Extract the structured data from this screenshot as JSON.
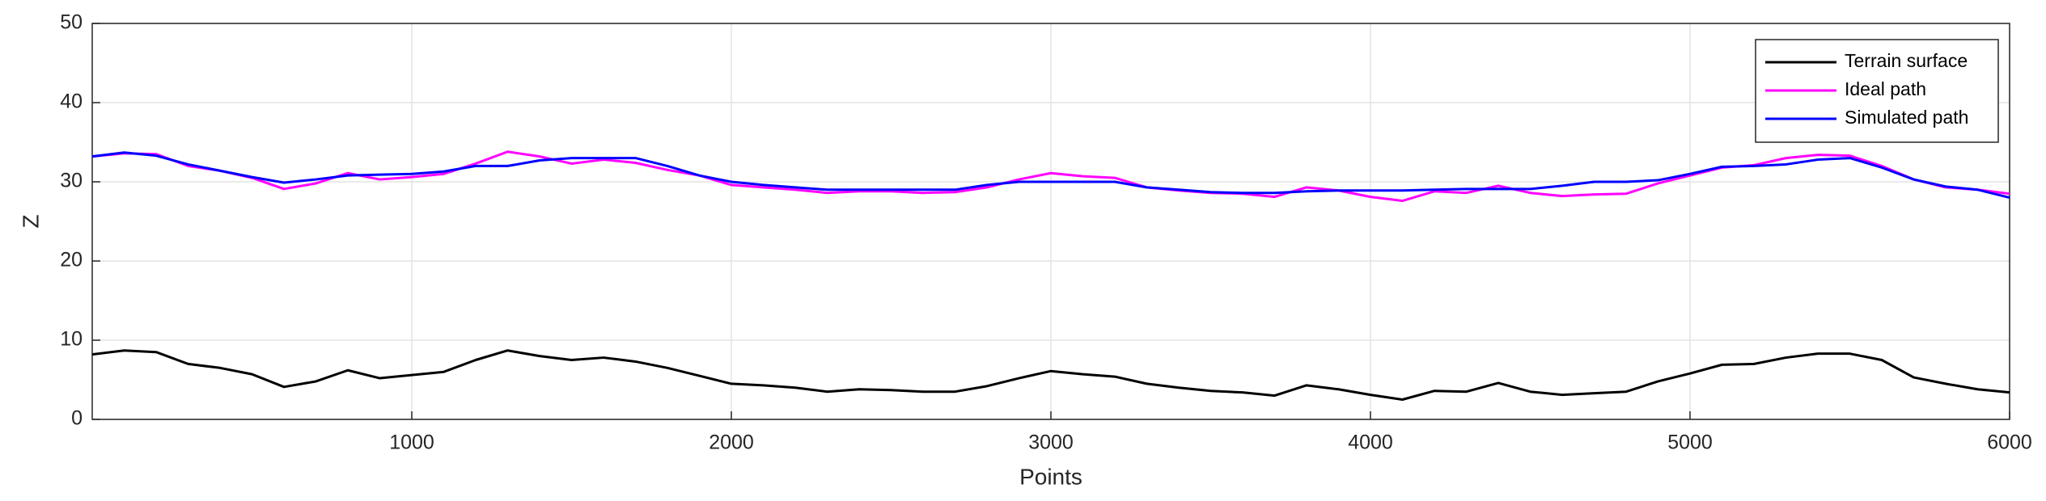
{
  "chart_data": {
    "type": "line",
    "xlabel": "Points",
    "ylabel": "Z",
    "x": [
      0,
      100,
      200,
      300,
      400,
      500,
      600,
      700,
      800,
      900,
      1000,
      1100,
      1200,
      1300,
      1400,
      1500,
      1600,
      1700,
      1800,
      1900,
      2000,
      2100,
      2200,
      2300,
      2400,
      2500,
      2600,
      2700,
      2800,
      2900,
      3000,
      3100,
      3200,
      3300,
      3400,
      3500,
      3600,
      3700,
      3800,
      3900,
      4000,
      4100,
      4200,
      4300,
      4400,
      4500,
      4600,
      4700,
      4800,
      4900,
      5000,
      5100,
      5200,
      5300,
      5400,
      5500,
      5600,
      5700,
      5800,
      5900,
      6000
    ],
    "series": [
      {
        "name": "Terrain surface",
        "color": "#000000",
        "values": [
          8.2,
          8.7,
          8.5,
          7.0,
          6.5,
          5.7,
          4.1,
          4.8,
          6.2,
          5.2,
          5.6,
          6.0,
          7.5,
          8.7,
          8.0,
          7.5,
          7.8,
          7.3,
          6.5,
          5.5,
          4.5,
          4.3,
          4.0,
          3.5,
          3.8,
          3.7,
          3.5,
          3.5,
          4.2,
          5.2,
          6.1,
          5.7,
          5.4,
          4.5,
          4.0,
          3.6,
          3.4,
          3.0,
          4.3,
          3.8,
          3.1,
          2.5,
          3.6,
          3.5,
          4.6,
          3.5,
          3.1,
          3.3,
          3.5,
          4.8,
          5.8,
          6.9,
          7.0,
          7.8,
          8.3,
          8.3,
          7.5,
          5.3,
          4.5,
          3.8,
          3.4
        ]
      },
      {
        "name": "Ideal path",
        "color": "#ff00ff",
        "values": [
          33.2,
          33.6,
          33.5,
          32.0,
          31.4,
          30.5,
          29.1,
          29.8,
          31.1,
          30.3,
          30.6,
          31.0,
          32.3,
          33.8,
          33.2,
          32.3,
          32.8,
          32.4,
          31.5,
          30.8,
          29.6,
          29.3,
          29.0,
          28.6,
          28.8,
          28.8,
          28.6,
          28.7,
          29.3,
          30.3,
          31.1,
          30.7,
          30.5,
          29.3,
          28.9,
          28.6,
          28.5,
          28.1,
          29.3,
          28.9,
          28.1,
          27.6,
          28.8,
          28.6,
          29.5,
          28.6,
          28.2,
          28.4,
          28.5,
          29.8,
          30.8,
          31.8,
          32.1,
          33.0,
          33.4,
          33.3,
          32.0,
          30.3,
          29.3,
          29.0,
          28.5
        ]
      },
      {
        "name": "Simulated path",
        "color": "#0000ff",
        "values": [
          33.2,
          33.7,
          33.3,
          32.2,
          31.4,
          30.6,
          29.9,
          30.3,
          30.8,
          30.9,
          31.0,
          31.3,
          32.0,
          32.0,
          32.7,
          33.0,
          33.0,
          33.0,
          32.0,
          30.8,
          30.0,
          29.6,
          29.3,
          29.0,
          29.0,
          29.0,
          29.0,
          29.0,
          29.6,
          30.0,
          30.0,
          30.0,
          30.0,
          29.3,
          29.0,
          28.7,
          28.6,
          28.6,
          28.8,
          28.9,
          28.9,
          28.9,
          29.0,
          29.1,
          29.1,
          29.1,
          29.5,
          30.0,
          30.0,
          30.2,
          31.0,
          31.9,
          32.0,
          32.2,
          32.8,
          33.0,
          31.8,
          30.3,
          29.4,
          29.0,
          28.0
        ]
      }
    ],
    "xlim": [
      0,
      6000
    ],
    "xticks": [
      1000,
      2000,
      3000,
      4000,
      5000,
      6000
    ],
    "ylim": [
      0,
      50
    ],
    "yticks": [
      0,
      10,
      20,
      30,
      40,
      50
    ],
    "grid": true,
    "legend": "top-right"
  }
}
